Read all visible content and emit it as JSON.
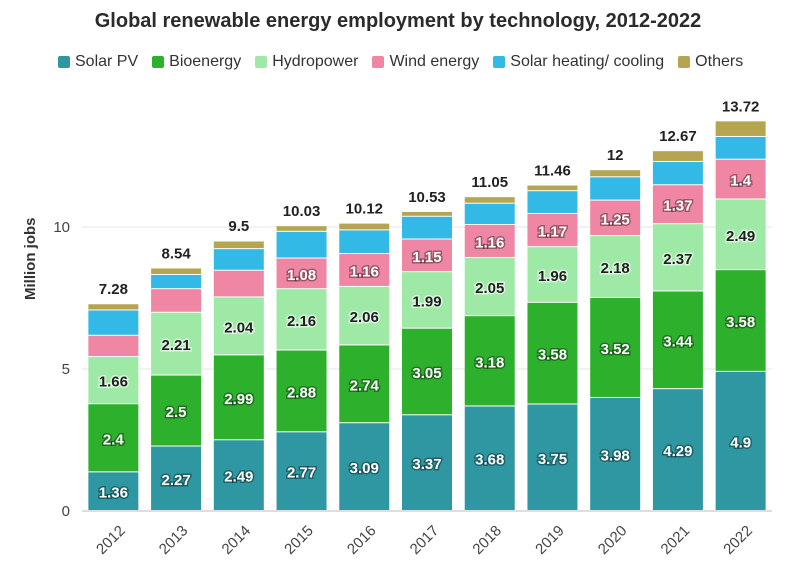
{
  "chart_data": {
    "type": "bar",
    "stacked": true,
    "title": "Global renewable energy employment by technology, 2012-2022",
    "ylabel": "Million jobs",
    "xlabel": "",
    "ylim": [
      0,
      14
    ],
    "yticks": [
      0,
      5,
      10
    ],
    "grid": true,
    "legend_position": "top",
    "categories": [
      "2012",
      "2013",
      "2014",
      "2015",
      "2016",
      "2017",
      "2018",
      "2019",
      "2020",
      "2021",
      "2022"
    ],
    "totals": [
      7.28,
      8.54,
      9.5,
      10.03,
      10.12,
      10.53,
      11.05,
      11.46,
      12,
      12.67,
      13.72
    ],
    "series": [
      {
        "name": "Solar PV",
        "color": "#2e97a2",
        "label_color": "#ffffff",
        "values": [
          1.36,
          2.27,
          2.49,
          2.77,
          3.09,
          3.37,
          3.68,
          3.75,
          3.98,
          4.29,
          4.9
        ],
        "labels": [
          "1.36",
          "2.27",
          "2.49",
          "2.77",
          "3.09",
          "3.37",
          "3.68",
          "3.75",
          "3.98",
          "4.29",
          "4.9"
        ]
      },
      {
        "name": "Bioenergy",
        "color": "#2db12d",
        "label_color": "#ffffff",
        "values": [
          2.4,
          2.5,
          2.99,
          2.88,
          2.74,
          3.05,
          3.18,
          3.58,
          3.52,
          3.44,
          3.58
        ],
        "labels": [
          "2.4",
          "2.5",
          "2.99",
          "2.88",
          "2.74",
          "3.05",
          "3.18",
          "3.58",
          "3.52",
          "3.44",
          "3.58"
        ]
      },
      {
        "name": "Hydropower",
        "color": "#9ee9a6",
        "label_color": "#1f1f1f",
        "values": [
          1.66,
          2.21,
          2.04,
          2.16,
          2.06,
          1.99,
          2.05,
          1.96,
          2.18,
          2.37,
          2.49
        ],
        "labels": [
          "1.66",
          "2.21",
          "2.04",
          "2.16",
          "2.06",
          "1.99",
          "2.05",
          "1.96",
          "2.18",
          "2.37",
          "2.49"
        ]
      },
      {
        "name": "Wind energy",
        "color": "#ef86a3",
        "label_color": "#ffffff",
        "values": [
          0.75,
          0.83,
          0.94,
          1.08,
          1.16,
          1.15,
          1.16,
          1.17,
          1.25,
          1.37,
          1.4
        ],
        "labels": [
          "",
          "",
          "",
          "1.08",
          "1.16",
          "1.15",
          "1.16",
          "1.17",
          "1.25",
          "1.37",
          "1.4"
        ]
      },
      {
        "name": "Solar heating/ cooling",
        "color": "#32b9e6",
        "label_color": "#ffffff",
        "values": [
          0.89,
          0.5,
          0.76,
          0.94,
          0.83,
          0.8,
          0.75,
          0.8,
          0.82,
          0.82,
          0.8
        ],
        "labels": [
          "",
          "",
          "",
          "",
          "",
          "",
          "",
          "",
          "",
          "",
          ""
        ]
      },
      {
        "name": "Others",
        "color": "#b5a550",
        "label_color": "#ffffff",
        "values": [
          0.22,
          0.23,
          0.27,
          0.2,
          0.24,
          0.17,
          0.23,
          0.2,
          0.25,
          0.38,
          0.55
        ],
        "labels": [
          "",
          "",
          "",
          "",
          "",
          "",
          "",
          "",
          "",
          "",
          ""
        ]
      }
    ]
  }
}
